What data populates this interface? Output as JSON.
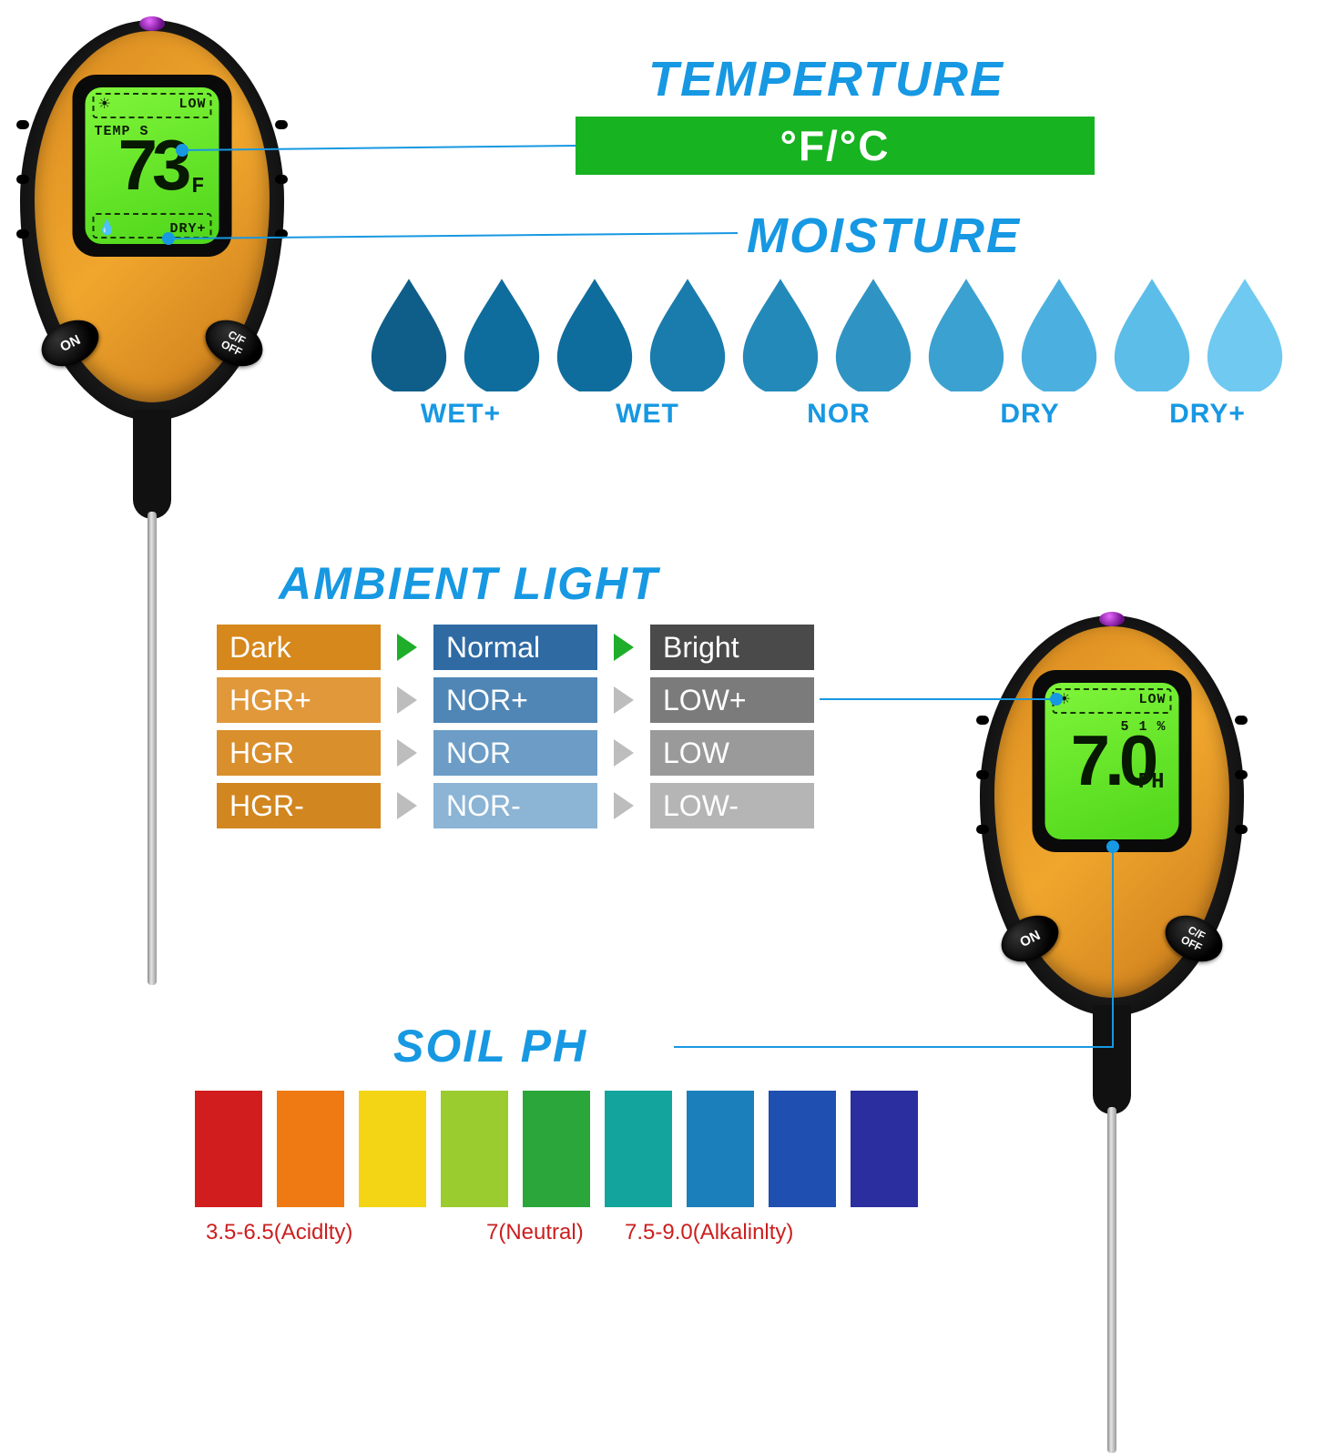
{
  "headings": {
    "temperature": "TEMPERTURE",
    "moisture": "MOISTURE",
    "ambient_light": "AMBIENT LIGHT",
    "soil_ph": "SOIL PH"
  },
  "temperature": {
    "bar_text": "°F/°C",
    "bar_bg": "#17b321",
    "bar_fg": "#ffffff"
  },
  "moisture": {
    "drop_colors": [
      "#0f5e89",
      "#0f6d9d",
      "#0f6d9d",
      "#1a7cad",
      "#2389b9",
      "#2f94c3",
      "#3ba1d1",
      "#4bb0df",
      "#5cbde9",
      "#6fc9f0"
    ],
    "labels": [
      "WET+",
      "WET",
      "NOR",
      "DRY",
      "DRY+"
    ]
  },
  "ambient_light": {
    "columns": [
      {
        "header": "Dark",
        "header_bg": "#d6881c",
        "header_tri": "#1fae2a",
        "cells": [
          {
            "t": "HGR+",
            "bg": "#e0983a"
          },
          {
            "t": "HGR",
            "bg": "#d98f2c"
          },
          {
            "t": "HGR-",
            "bg": "#d2861f"
          }
        ]
      },
      {
        "header": "Normal",
        "header_bg": "#2f6aa3",
        "header_tri": "#1fae2a",
        "cells": [
          {
            "t": "NOR+",
            "bg": "#4f86b6"
          },
          {
            "t": "NOR",
            "bg": "#6d9dc6"
          },
          {
            "t": "NOR-",
            "bg": "#8bb4d5"
          }
        ]
      },
      {
        "header": "Bright",
        "header_bg": "#4a4a4a",
        "header_tri": null,
        "cells": [
          {
            "t": "LOW+",
            "bg": "#7b7b7b"
          },
          {
            "t": "LOW",
            "bg": "#9a9a9a"
          },
          {
            "t": "LOW-",
            "bg": "#b5b5b5"
          }
        ]
      }
    ],
    "row_tri_color": "#bdbdbd"
  },
  "soil_ph": {
    "swatches": [
      "#d11d1d",
      "#ef7a13",
      "#f4d516",
      "#9acb2f",
      "#2aa63a",
      "#13a59d",
      "#1a7fbb",
      "#1f4fb0",
      "#2a2e9e"
    ],
    "labels": {
      "acidity": "3.5-6.5(Acidlty)",
      "neutral": "7(Neutral)",
      "alkalinity": "7.5-9.0(Alkalinlty)"
    }
  },
  "device_left": {
    "lcd": {
      "sun": "☀",
      "top": "LOW",
      "mid_label": "TEMP S",
      "big": "73",
      "unit": "°F",
      "drop": "💧",
      "bottom": "DRY+"
    },
    "btn_on": "ON",
    "btn_cf": "C/F\nOFF"
  },
  "device_right": {
    "lcd": {
      "sun": "☀",
      "top": "LOW",
      "mid_label": "5 1 %",
      "big": "7.0",
      "unit": "PH",
      "drop": "",
      "bottom": ""
    },
    "btn_on": "ON",
    "btn_cf": "C/F\nOFF"
  }
}
